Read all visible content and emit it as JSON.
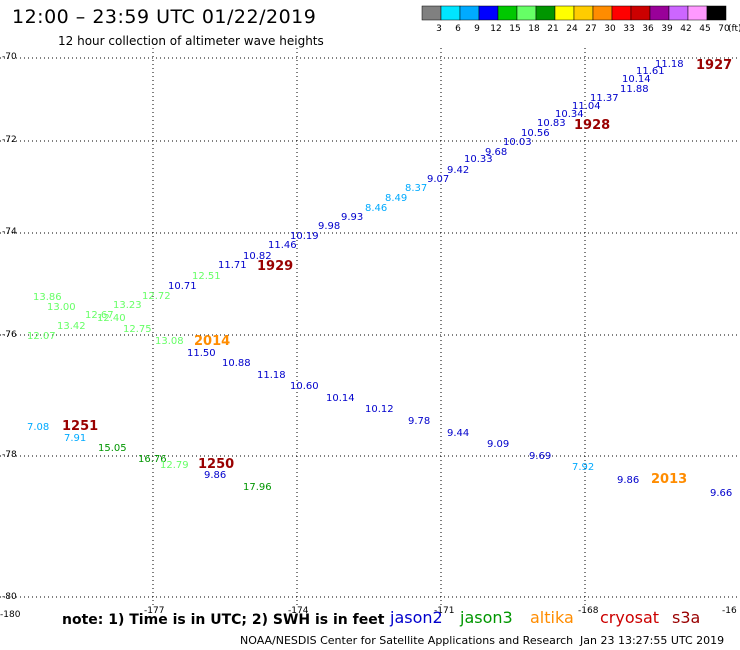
{
  "header": {
    "title": "12:00 – 23:59 UTC 01/22/2019",
    "subtitle": "12 hour collection of altimeter wave heights"
  },
  "scale": {
    "unit_label": "(ft)",
    "ticks": [
      "3",
      "6",
      "9",
      "12",
      "15",
      "18",
      "21",
      "24",
      "27",
      "30",
      "33",
      "36",
      "39",
      "42",
      "45",
      "70"
    ],
    "colors": [
      "#808080",
      "#00e5ff",
      "#00aaff",
      "#0000ff",
      "#00c800",
      "#66ff66",
      "#009600",
      "#ffff00",
      "#ffcc00",
      "#ff8c00",
      "#ff0000",
      "#cc0000",
      "#990099",
      "#cc66ff",
      "#ff99ff",
      "#000000"
    ]
  },
  "axes": {
    "lat_labels": [
      "-70",
      "-72",
      "-74",
      "-76",
      "-78",
      "-80"
    ],
    "lon_labels": [
      "-180",
      "-177",
      "-174",
      "-171",
      "-168",
      "-16"
    ]
  },
  "footer": {
    "note": "note: 1) Time is in UTC; 2) SWH is in feet",
    "credit": "NOAA/NESDIS Center for Satellite Applications and Research",
    "timestamp": "Jan 23 13:27:55 UTC 2019"
  },
  "satellites": [
    {
      "name": "jason2",
      "color": "#0000cc"
    },
    {
      "name": "jason3",
      "color": "#009600"
    },
    {
      "name": "altika",
      "color": "#ff8c00"
    },
    {
      "name": "cryosat",
      "color": "#cc0000"
    },
    {
      "name": "s3a",
      "color": "#990000"
    }
  ],
  "observations": [
    {
      "v": "11.18",
      "c": "#0000cc"
    },
    {
      "v": "10.14",
      "c": "#0000cc"
    },
    {
      "v": "11.61",
      "c": "#0000cc"
    },
    {
      "v": "11.88",
      "c": "#0000cc"
    },
    {
      "v": "11.37",
      "c": "#0000cc"
    },
    {
      "v": "11.04",
      "c": "#0000cc"
    },
    {
      "v": "10.34",
      "c": "#0000cc"
    },
    {
      "v": "10.83",
      "c": "#0000cc"
    },
    {
      "v": "10.56",
      "c": "#0000cc"
    },
    {
      "v": "10.03",
      "c": "#0000cc"
    },
    {
      "v": "9.68",
      "c": "#0000cc"
    },
    {
      "v": "10.33",
      "c": "#0000cc"
    },
    {
      "v": "9.42",
      "c": "#0000cc"
    },
    {
      "v": "9.07",
      "c": "#0000cc"
    },
    {
      "v": "8.37",
      "c": "#00aaff"
    },
    {
      "v": "8.49",
      "c": "#00aaff"
    },
    {
      "v": "8.46",
      "c": "#00aaff"
    },
    {
      "v": "9.93",
      "c": "#0000cc"
    },
    {
      "v": "9.98",
      "c": "#0000cc"
    },
    {
      "v": "10.19",
      "c": "#0000cc"
    },
    {
      "v": "11.46",
      "c": "#0000cc"
    },
    {
      "v": "10.82",
      "c": "#0000cc"
    },
    {
      "v": "11.71",
      "c": "#0000cc"
    },
    {
      "v": "12.51",
      "c": "#66ff66"
    },
    {
      "v": "10.71",
      "c": "#0000cc"
    },
    {
      "v": "12.72",
      "c": "#66ff66"
    },
    {
      "v": "13.86",
      "c": "#66ff66"
    },
    {
      "v": "13.00",
      "c": "#66ff66"
    },
    {
      "v": "13.23",
      "c": "#66ff66"
    },
    {
      "v": "12.67",
      "c": "#66ff66"
    },
    {
      "v": "12.40",
      "c": "#66ff66"
    },
    {
      "v": "13.42",
      "c": "#66ff66"
    },
    {
      "v": "12.75",
      "c": "#66ff66"
    },
    {
      "v": "12.07",
      "c": "#66ff66"
    },
    {
      "v": "13.08",
      "c": "#66ff66"
    },
    {
      "v": "11.50",
      "c": "#0000cc"
    },
    {
      "v": "10.88",
      "c": "#0000cc"
    },
    {
      "v": "11.18",
      "c": "#0000cc"
    },
    {
      "v": "10.60",
      "c": "#0000cc"
    },
    {
      "v": "10.14",
      "c": "#0000cc"
    },
    {
      "v": "10.12",
      "c": "#0000cc"
    },
    {
      "v": "9.78",
      "c": "#0000cc"
    },
    {
      "v": "9.44",
      "c": "#0000cc"
    },
    {
      "v": "9.09",
      "c": "#0000cc"
    },
    {
      "v": "9.69",
      "c": "#0000cc"
    },
    {
      "v": "7.92",
      "c": "#00aaff"
    },
    {
      "v": "9.86",
      "c": "#0000cc"
    },
    {
      "v": "9.66",
      "c": "#0000cc"
    },
    {
      "v": "7.08",
      "c": "#00aaff"
    },
    {
      "v": "7.91",
      "c": "#00aaff"
    },
    {
      "v": "15.05",
      "c": "#009600"
    },
    {
      "v": "16.76",
      "c": "#009600"
    },
    {
      "v": "12.79",
      "c": "#66ff66"
    },
    {
      "v": "9.86",
      "c": "#0000cc"
    },
    {
      "v": "17.96",
      "c": "#009600"
    }
  ],
  "time_labels": [
    {
      "t": "1927",
      "c": "#990000"
    },
    {
      "t": "1928",
      "c": "#990000"
    },
    {
      "t": "1929",
      "c": "#990000"
    },
    {
      "t": "2014",
      "c": "#ff8c00"
    },
    {
      "t": "1251",
      "c": "#990000"
    },
    {
      "t": "1250",
      "c": "#990000"
    },
    {
      "t": "2013",
      "c": "#ff8c00"
    }
  ]
}
